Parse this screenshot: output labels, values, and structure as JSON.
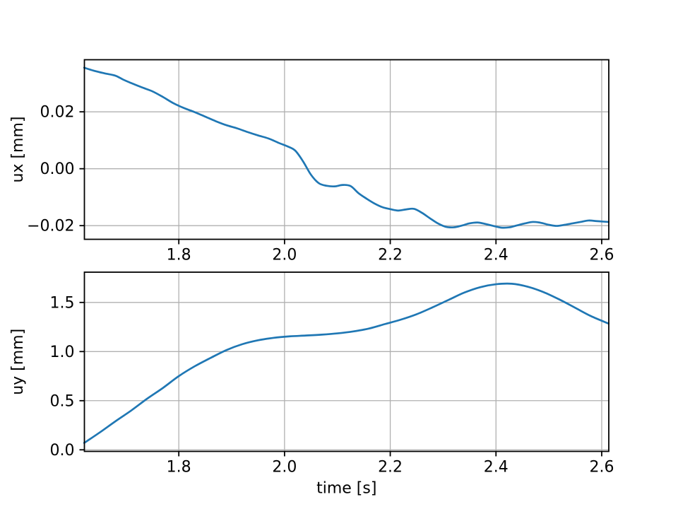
{
  "styles": {
    "line_color": "#1f77b4",
    "grid_color": "#b0b0b0",
    "spine_color": "#000000",
    "text_color": "#000000"
  },
  "chart_data": [
    {
      "type": "line",
      "name": "ux-time-plot",
      "title": "",
      "xlabel": "",
      "ylabel": "ux [mm]",
      "xlim": [
        1.6214,
        2.6134
      ],
      "ylim": [
        -0.0248,
        0.0383
      ],
      "xticks": [
        1.8,
        2.0,
        2.2,
        2.4,
        2.6
      ],
      "xtick_labels": [
        "1.8",
        "2.0",
        "2.2",
        "2.4",
        "2.6"
      ],
      "yticks": [
        -0.02,
        0.0,
        0.02
      ],
      "ytick_labels": [
        "−0.02",
        "0.00",
        "0.02"
      ],
      "grid": true,
      "legend_position": "none",
      "series": [
        {
          "name": "ux",
          "color": "#1f77b4",
          "x": [
            1.621,
            1.64,
            1.66,
            1.68,
            1.695,
            1.71,
            1.73,
            1.75,
            1.77,
            1.79,
            1.81,
            1.83,
            1.85,
            1.87,
            1.89,
            1.91,
            1.93,
            1.95,
            1.97,
            1.99,
            2.005,
            2.02,
            2.035,
            2.05,
            2.065,
            2.08,
            2.095,
            2.11,
            2.125,
            2.14,
            2.155,
            2.17,
            2.185,
            2.2,
            2.215,
            2.23,
            2.245,
            2.26,
            2.275,
            2.29,
            2.305,
            2.32,
            2.335,
            2.35,
            2.365,
            2.38,
            2.395,
            2.41,
            2.425,
            2.44,
            2.455,
            2.47,
            2.485,
            2.5,
            2.515,
            2.53,
            2.545,
            2.56,
            2.575,
            2.59,
            2.605,
            2.613
          ],
          "y": [
            0.0355,
            0.0344,
            0.0335,
            0.0327,
            0.0313,
            0.0301,
            0.0286,
            0.0272,
            0.0252,
            0.023,
            0.0213,
            0.0199,
            0.0183,
            0.0167,
            0.0153,
            0.0142,
            0.0129,
            0.0117,
            0.0106,
            0.009,
            0.0079,
            0.0064,
            0.0026,
            -0.0021,
            -0.0051,
            -0.006,
            -0.0062,
            -0.0057,
            -0.0061,
            -0.0086,
            -0.0105,
            -0.0122,
            -0.0135,
            -0.0142,
            -0.0147,
            -0.0143,
            -0.0141,
            -0.0155,
            -0.0174,
            -0.0192,
            -0.0204,
            -0.0206,
            -0.02,
            -0.0192,
            -0.0189,
            -0.0194,
            -0.0201,
            -0.0207,
            -0.0206,
            -0.0199,
            -0.0192,
            -0.0187,
            -0.019,
            -0.0197,
            -0.0201,
            -0.0197,
            -0.0192,
            -0.0187,
            -0.0182,
            -0.0184,
            -0.0186,
            -0.0187
          ]
        }
      ]
    },
    {
      "type": "line",
      "name": "uy-time-plot",
      "title": "",
      "xlabel": "time [s]",
      "ylabel": "uy [mm]",
      "xlim": [
        1.6214,
        2.6134
      ],
      "ylim": [
        -0.016,
        1.808
      ],
      "xticks": [
        1.8,
        2.0,
        2.2,
        2.4,
        2.6
      ],
      "xtick_labels": [
        "1.8",
        "2.0",
        "2.2",
        "2.4",
        "2.6"
      ],
      "yticks": [
        0.0,
        0.5,
        1.0,
        1.5
      ],
      "ytick_labels": [
        "0.0",
        "0.5",
        "1.0",
        "1.5"
      ],
      "grid": true,
      "legend_position": "none",
      "series": [
        {
          "name": "uy",
          "color": "#1f77b4",
          "x": [
            1.621,
            1.65,
            1.68,
            1.71,
            1.74,
            1.77,
            1.8,
            1.83,
            1.86,
            1.89,
            1.92,
            1.95,
            1.98,
            2.01,
            2.04,
            2.07,
            2.1,
            2.13,
            2.16,
            2.19,
            2.22,
            2.25,
            2.28,
            2.31,
            2.34,
            2.37,
            2.4,
            2.43,
            2.46,
            2.49,
            2.52,
            2.55,
            2.58,
            2.613
          ],
          "y": [
            0.07,
            0.175,
            0.29,
            0.4,
            0.52,
            0.63,
            0.75,
            0.85,
            0.935,
            1.015,
            1.075,
            1.115,
            1.14,
            1.155,
            1.163,
            1.172,
            1.185,
            1.205,
            1.235,
            1.28,
            1.325,
            1.38,
            1.45,
            1.525,
            1.6,
            1.655,
            1.685,
            1.69,
            1.66,
            1.605,
            1.53,
            1.445,
            1.36,
            1.285
          ]
        }
      ]
    }
  ]
}
